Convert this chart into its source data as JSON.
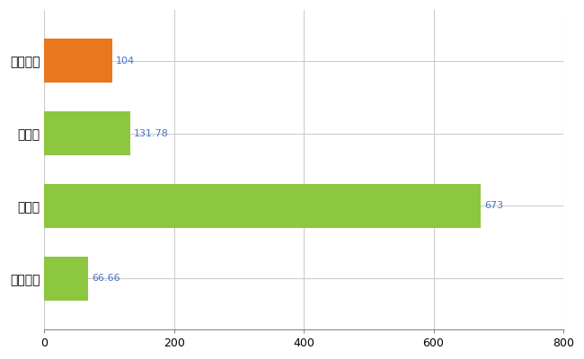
{
  "categories": [
    "西淡川区",
    "県平均",
    "県最大",
    "全国平均"
  ],
  "values": [
    104,
    131.78,
    673,
    66.66
  ],
  "bar_colors": [
    "#e8771e",
    "#8dc63f",
    "#8dc63f",
    "#8dc63f"
  ],
  "value_labels": [
    "104",
    "131.78",
    "673",
    "66.66"
  ],
  "value_label_color": "#4472c4",
  "xlim": [
    0,
    800
  ],
  "xticks": [
    0,
    200,
    400,
    600,
    800
  ],
  "background_color": "#ffffff",
  "grid_color": "#cccccc",
  "bar_height": 0.6,
  "figsize": [
    6.5,
    4.0
  ],
  "dpi": 100
}
